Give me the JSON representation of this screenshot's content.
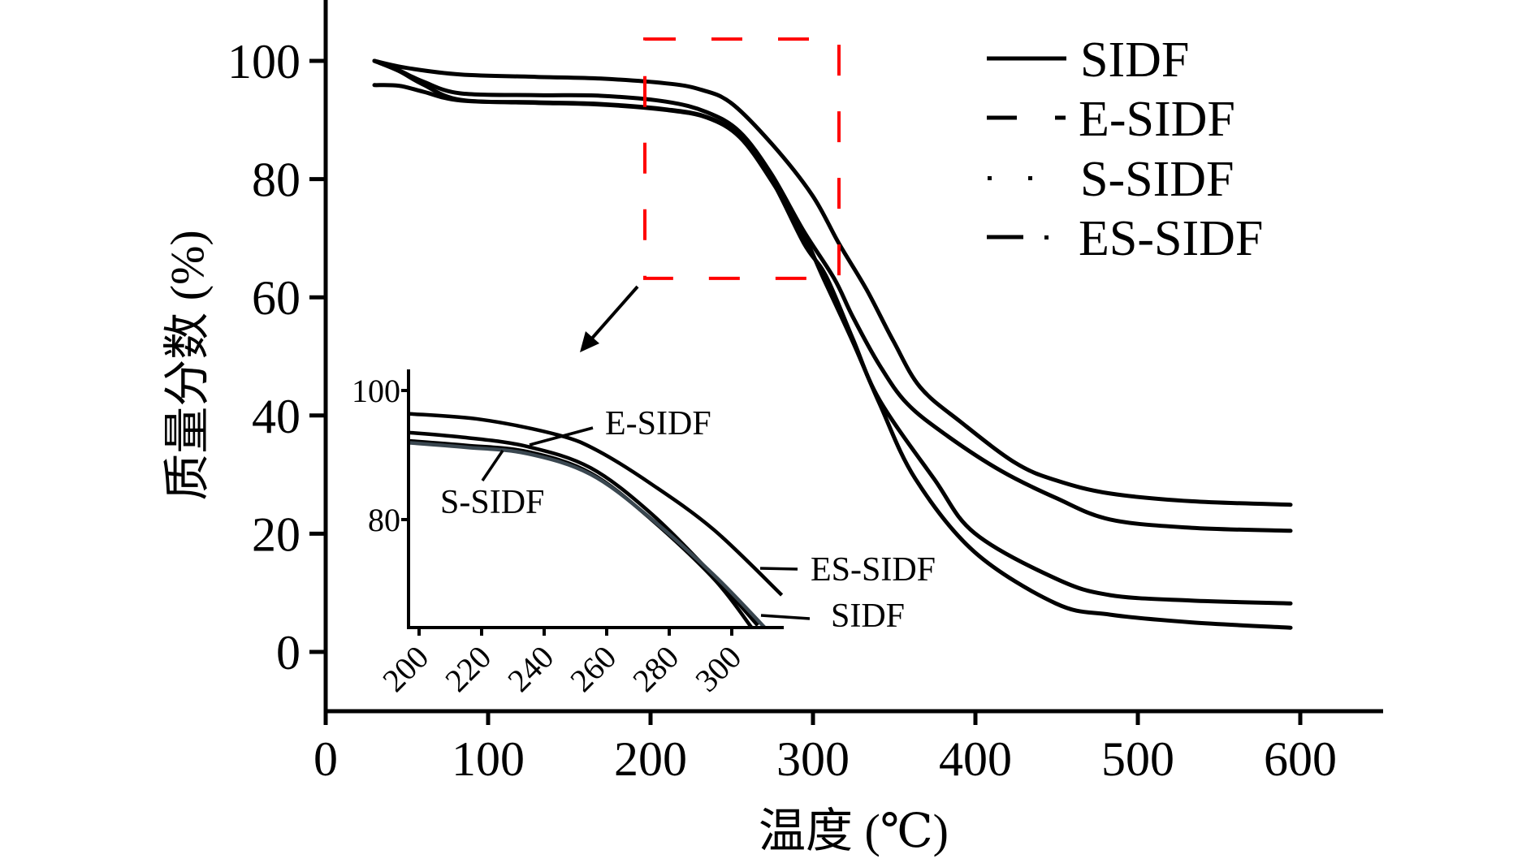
{
  "chart_data": {
    "type": "line",
    "title": "",
    "xlabel": "温度 (℃)",
    "ylabel": "质量分数 (%)",
    "xlim": [
      0,
      651
    ],
    "ylim": [
      -10,
      110
    ],
    "x_ticks": [
      0,
      100,
      200,
      300,
      400,
      500,
      600
    ],
    "y_ticks": [
      0,
      20,
      40,
      60,
      80,
      100
    ],
    "grid": false,
    "legend": {
      "position": "top-right",
      "entries": [
        {
          "name": "SIDF",
          "style": "solid"
        },
        {
          "name": "E-SIDF",
          "style": "dash-dot"
        },
        {
          "name": "S-SIDF",
          "style": "dotted"
        },
        {
          "name": "ES-SIDF",
          "style": "dash-dot"
        }
      ]
    },
    "series": [
      {
        "name": "ES-SIDF",
        "color": "#000000",
        "points": [
          [
            30,
            100
          ],
          [
            50,
            98.8
          ],
          [
            83,
            97.7
          ],
          [
            130,
            97.3
          ],
          [
            169.5,
            97.0
          ],
          [
            209.5,
            96.2
          ],
          [
            230,
            95.2
          ],
          [
            249.5,
            92.9
          ],
          [
            274.5,
            86.0
          ],
          [
            299.5,
            77.3
          ],
          [
            316,
            69.1
          ],
          [
            333,
            61.3
          ],
          [
            349.5,
            52.6
          ],
          [
            366,
            44.8
          ],
          [
            391,
            38.9
          ],
          [
            424.5,
            32.0
          ],
          [
            450,
            29.0
          ],
          [
            483,
            26.8
          ],
          [
            533,
            25.5
          ],
          [
            594,
            24.9
          ]
        ]
      },
      {
        "name": "E-SIDF",
        "color": "#000000",
        "points": [
          [
            30,
            100
          ],
          [
            45,
            98.4
          ],
          [
            60,
            96.5
          ],
          [
            83,
            94.5
          ],
          [
            130,
            94.2
          ],
          [
            169.5,
            94.1
          ],
          [
            209.5,
            93.1
          ],
          [
            234.8,
            91.3
          ],
          [
            254.9,
            88.0
          ],
          [
            274.3,
            80.9
          ],
          [
            294.3,
            71.2
          ],
          [
            313,
            63.2
          ],
          [
            324.5,
            56.7
          ],
          [
            341,
            48.5
          ],
          [
            358,
            42.0
          ],
          [
            383,
            36.5
          ],
          [
            416,
            30.6
          ],
          [
            450,
            26.0
          ],
          [
            483,
            22.4
          ],
          [
            533,
            21.0
          ],
          [
            594,
            20.5
          ]
        ]
      },
      {
        "name": "SIDF",
        "color": "#000000",
        "points": [
          [
            30,
            100
          ],
          [
            45,
            98.3
          ],
          [
            60,
            96.0
          ],
          [
            83,
            93.4
          ],
          [
            130,
            93.0
          ],
          [
            169.5,
            92.7
          ],
          [
            209.5,
            91.8
          ],
          [
            234.8,
            90.5
          ],
          [
            254.9,
            87.2
          ],
          [
            274.3,
            80.0
          ],
          [
            294.5,
            69.1
          ],
          [
            308,
            63.6
          ],
          [
            324.5,
            53.0
          ],
          [
            341,
            42.6
          ],
          [
            374.5,
            29.3
          ],
          [
            399.5,
            20.1
          ],
          [
            449.5,
            12.4
          ],
          [
            483,
            9.6
          ],
          [
            533,
            8.7
          ],
          [
            594,
            8.2
          ]
        ]
      },
      {
        "name": "S-SIDF",
        "color": "#000000",
        "points": [
          [
            30,
            95.9
          ],
          [
            45,
            95.8
          ],
          [
            60,
            94.8
          ],
          [
            83,
            93.3
          ],
          [
            130,
            92.9
          ],
          [
            169.5,
            92.6
          ],
          [
            209.5,
            91.7
          ],
          [
            234.8,
            90.4
          ],
          [
            254.9,
            87.1
          ],
          [
            274.3,
            79.8
          ],
          [
            294.3,
            70.5
          ],
          [
            306.3,
            63.3
          ],
          [
            324.5,
            52.5
          ],
          [
            341,
            42.0
          ],
          [
            363,
            29.3
          ],
          [
            399.5,
            16.9
          ],
          [
            449.5,
            8.2
          ],
          [
            483,
            6.3
          ],
          [
            533,
            5.0
          ],
          [
            594,
            4.1
          ]
        ]
      }
    ],
    "zoom_box": {
      "x_range": [
        196.5,
        316
      ],
      "y_range": [
        63.2,
        103.7
      ],
      "color": "#ff0000",
      "style": "dashed"
    },
    "inset": {
      "xlim": [
        196.6,
        316
      ],
      "ylim": [
        63.3,
        103.4
      ],
      "x_ticks": [
        200,
        220,
        240,
        260,
        280,
        300
      ],
      "y_ticks": [
        80,
        100
      ],
      "x_tick_rotation_deg": -45,
      "series": [
        {
          "name": "ES-SIDF",
          "color": "#000000",
          "points": [
            [
              196.6,
              96.4
            ],
            [
              220,
              95.5
            ],
            [
              244.6,
              93.1
            ],
            [
              257.4,
              90.6
            ],
            [
              274.3,
              85.5
            ],
            [
              294.3,
              78.4
            ],
            [
              316,
              68.3
            ]
          ]
        },
        {
          "name": "E-SIDF",
          "color": "#000000",
          "points": [
            [
              196.6,
              93.5
            ],
            [
              215,
              92.7
            ],
            [
              234.8,
              91.3
            ],
            [
              254.9,
              88.0
            ],
            [
              274.3,
              80.9
            ],
            [
              294.3,
              71.2
            ],
            [
              308.3,
              63.6
            ]
          ]
        },
        {
          "name": "S-SIDF",
          "color": "#000000",
          "points": [
            [
              196.6,
              92.2
            ],
            [
              215,
              91.5
            ],
            [
              234.8,
              90.5
            ],
            [
              254.9,
              87.2
            ],
            [
              274.3,
              80.0
            ],
            [
              294.3,
              70.8
            ],
            [
              306.3,
              63.3
            ]
          ]
        },
        {
          "name": "SIDF",
          "color": "#3a4750",
          "points": [
            [
              196.6,
              91.9
            ],
            [
              215,
              91.2
            ],
            [
              234.8,
              90.2
            ],
            [
              254.9,
              87.0
            ],
            [
              274.3,
              80.1
            ],
            [
              294.3,
              71.4
            ],
            [
              310.5,
              63.3
            ]
          ]
        }
      ],
      "annotations": [
        {
          "text": "E-SIDF",
          "target": "E-SIDF"
        },
        {
          "text": "S-SIDF",
          "target": "S-SIDF"
        },
        {
          "text": "ES-SIDF",
          "target": "ES-SIDF"
        },
        {
          "text": "SIDF",
          "target": "SIDF"
        }
      ]
    }
  }
}
